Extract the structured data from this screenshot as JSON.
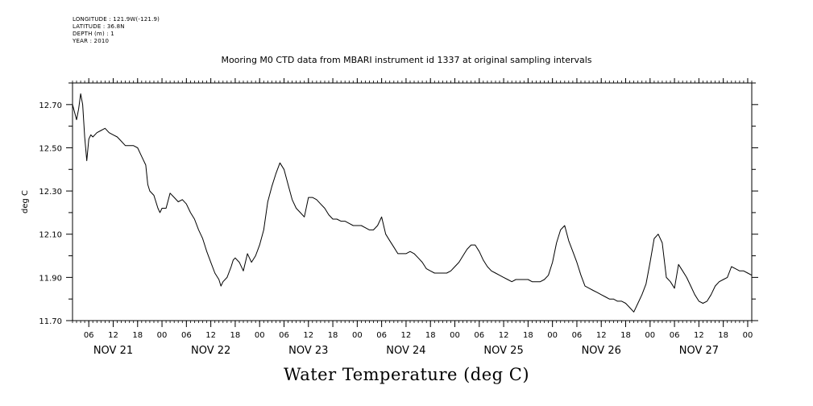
{
  "metadata": [
    "LONGITUDE : 121.9W(-121.9)",
    "LATITUDE : 36.8N",
    "DEPTH (m) : 1",
    "YEAR : 2010"
  ],
  "chart_data": {
    "type": "line",
    "title": "Mooring M0 CTD data from MBARI instrument id 1337 at original sampling intervals",
    "xlabel": "Water Temperature (deg C)",
    "ylabel": "deg C",
    "ylim": [
      11.7,
      12.8
    ],
    "yticks": [
      "11.70",
      "11.90",
      "12.10",
      "12.30",
      "12.50",
      "12.70"
    ],
    "xlim_hours": [
      0,
      167
    ],
    "hour_tick_labels": [
      "06",
      "12",
      "18",
      "00",
      "06",
      "12",
      "18",
      "00",
      "06",
      "12",
      "18",
      "00",
      "06",
      "12",
      "18",
      "00",
      "06",
      "12",
      "18",
      "00",
      "06",
      "12",
      "18",
      "00",
      "06",
      "12",
      "18",
      "00"
    ],
    "day_labels": [
      "NOV 21",
      "NOV 22",
      "NOV 23",
      "NOV 24",
      "NOV 25",
      "NOV 26",
      "NOV 27"
    ],
    "series": [
      {
        "x": [
          0,
          1,
          1.5,
          2,
          2.5,
          3,
          3.5,
          4,
          4.5,
          5,
          6,
          7,
          8,
          9,
          10,
          11,
          12,
          13,
          14,
          15,
          16,
          17,
          18,
          18.5,
          19,
          20,
          20.5,
          21,
          21.5,
          22,
          23,
          24,
          25,
          26,
          27,
          28,
          29,
          30,
          31,
          32,
          33,
          34,
          35,
          36,
          36.5,
          37,
          38,
          39,
          39.5,
          40,
          41,
          42,
          43,
          44,
          45,
          46,
          47,
          48,
          49,
          50,
          51,
          52,
          53,
          54,
          55,
          56,
          57,
          58,
          59,
          60,
          61,
          62,
          63,
          64,
          65,
          66,
          67,
          68,
          69,
          70,
          71,
          72,
          73,
          74,
          75,
          76,
          77,
          78,
          79,
          80,
          81,
          82,
          83,
          84,
          85,
          86,
          87,
          88,
          89,
          90,
          91,
          92,
          93,
          94,
          95,
          96,
          97,
          98,
          99,
          100,
          101,
          102,
          103,
          104,
          105,
          106,
          107,
          108,
          109,
          110,
          111,
          112,
          113,
          114,
          115,
          116,
          117,
          118,
          119,
          120,
          121,
          122,
          123,
          124,
          125,
          126,
          127,
          128,
          129,
          130,
          131,
          132,
          133,
          134,
          135,
          136,
          137,
          138,
          139,
          140,
          141,
          142,
          143,
          144,
          145,
          146,
          147,
          148,
          149,
          150,
          151,
          152,
          153,
          154,
          155,
          156,
          157,
          158,
          159,
          160,
          161,
          162,
          163,
          164,
          165,
          166,
          167
        ],
        "y": [
          12.7,
          12.63,
          12.68,
          12.75,
          12.7,
          12.55,
          12.44,
          12.54,
          12.56,
          12.55,
          12.57,
          12.58,
          12.59,
          12.57,
          12.56,
          12.55,
          12.53,
          12.51,
          12.51,
          12.51,
          12.5,
          12.46,
          12.42,
          12.33,
          12.3,
          12.28,
          12.25,
          12.22,
          12.2,
          12.22,
          12.22,
          12.29,
          12.27,
          12.25,
          12.26,
          12.24,
          12.2,
          12.17,
          12.12,
          12.08,
          12.02,
          11.97,
          11.92,
          11.89,
          11.86,
          11.88,
          11.9,
          11.95,
          11.98,
          11.99,
          11.97,
          11.93,
          12.01,
          11.97,
          12.0,
          12.05,
          12.12,
          12.25,
          12.32,
          12.38,
          12.43,
          12.4,
          12.33,
          12.26,
          12.22,
          12.2,
          12.18,
          12.27,
          12.27,
          12.26,
          12.24,
          12.22,
          12.19,
          12.17,
          12.17,
          12.16,
          12.16,
          12.15,
          12.14,
          12.14,
          12.14,
          12.13,
          12.12,
          12.12,
          12.14,
          12.18,
          12.1,
          12.07,
          12.04,
          12.01,
          12.01,
          12.01,
          12.02,
          12.01,
          11.99,
          11.97,
          11.94,
          11.93,
          11.92,
          11.92,
          11.92,
          11.92,
          11.93,
          11.95,
          11.97,
          12.0,
          12.03,
          12.05,
          12.05,
          12.02,
          11.98,
          11.95,
          11.93,
          11.92,
          11.91,
          11.9,
          11.89,
          11.88,
          11.89,
          11.89,
          11.89,
          11.89,
          11.88,
          11.88,
          11.88,
          11.89,
          11.91,
          11.97,
          12.06,
          12.12,
          12.14,
          12.07,
          12.02,
          11.97,
          11.91,
          11.86,
          11.85,
          11.84,
          11.83,
          11.82,
          11.81,
          11.8,
          11.8,
          11.79,
          11.79,
          11.78,
          11.76,
          11.74,
          11.78,
          11.82,
          11.87,
          11.97,
          12.08,
          12.1,
          12.06,
          11.9,
          11.88,
          11.85,
          11.96,
          11.93,
          11.9,
          11.86,
          11.82,
          11.79,
          11.78,
          11.79,
          11.82,
          11.86,
          11.88,
          11.89,
          11.9,
          11.95,
          11.94,
          11.93,
          11.93,
          11.92,
          11.91
        ]
      }
    ],
    "grid": false
  }
}
